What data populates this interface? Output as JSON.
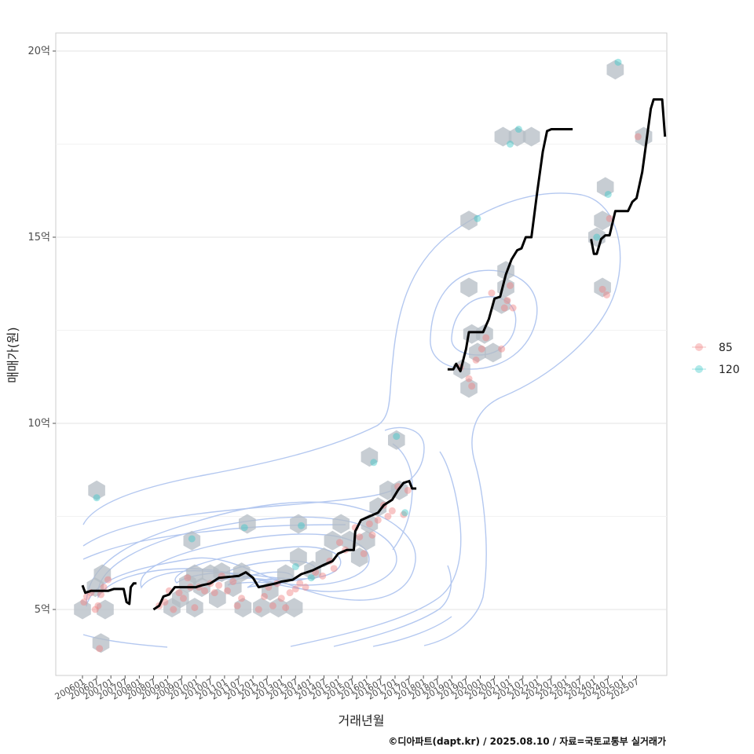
{
  "chart_data": {
    "type": "scatter",
    "xlabel": "거래년월",
    "ylabel": "매매가(원)",
    "caption": "©디아파트(dapt.kr) / 2025.08.10 / 자료=국토교통부 실거래가",
    "grid": true,
    "legend_position": "right",
    "xlim": [
      2005.75,
      2026.0
    ],
    "ylim": [
      3.5,
      20.5
    ],
    "y_ticks": [
      {
        "v": 5,
        "label": "5억"
      },
      {
        "v": 10,
        "label": "10억"
      },
      {
        "v": 15,
        "label": "15억"
      },
      {
        "v": 20,
        "label": "20억"
      }
    ],
    "x_ticks": [
      "200601",
      "200607",
      "200701",
      "200707",
      "200801",
      "200807",
      "200901",
      "200907",
      "201001",
      "201007",
      "201101",
      "201107",
      "201201",
      "201207",
      "201301",
      "201307",
      "201401",
      "201407",
      "201501",
      "201507",
      "201601",
      "201607",
      "201701",
      "201707",
      "201801",
      "201807",
      "201901",
      "201907",
      "202001",
      "202007",
      "202101",
      "202107",
      "202201",
      "202207",
      "202301",
      "202307",
      "202401",
      "202407",
      "202501",
      "202507"
    ],
    "colors": {
      "s85": "#f08080",
      "s120": "#3cc8c8",
      "trend": "#000000",
      "contour": "#b4c8f0",
      "hex": "#b4bcc4"
    },
    "series": [
      {
        "name": "85",
        "color": "#f08080",
        "points": [
          [
            2006.05,
            5.2
          ],
          [
            2006.15,
            5.35
          ],
          [
            2006.3,
            5.45
          ],
          [
            2006.45,
            5.0
          ],
          [
            2006.55,
            5.1
          ],
          [
            2006.65,
            5.4
          ],
          [
            2006.75,
            5.6
          ],
          [
            2006.6,
            3.95
          ],
          [
            2006.9,
            5.8
          ],
          [
            2008.7,
            5.1
          ],
          [
            2008.9,
            5.2
          ],
          [
            2009.05,
            5.5
          ],
          [
            2009.2,
            5.0
          ],
          [
            2009.4,
            5.45
          ],
          [
            2009.55,
            5.3
          ],
          [
            2009.7,
            5.85
          ],
          [
            2009.8,
            5.6
          ],
          [
            2009.95,
            5.05
          ],
          [
            2010.1,
            5.6
          ],
          [
            2010.3,
            5.5
          ],
          [
            2010.5,
            5.7
          ],
          [
            2010.65,
            5.45
          ],
          [
            2010.8,
            5.65
          ],
          [
            2010.9,
            5.9
          ],
          [
            2011.1,
            5.5
          ],
          [
            2011.3,
            5.75
          ],
          [
            2011.45,
            5.1
          ],
          [
            2011.6,
            5.3
          ],
          [
            2012.2,
            5.0
          ],
          [
            2012.4,
            5.35
          ],
          [
            2012.55,
            5.6
          ],
          [
            2012.7,
            5.1
          ],
          [
            2012.85,
            5.7
          ],
          [
            2013.0,
            5.3
          ],
          [
            2013.15,
            5.05
          ],
          [
            2013.3,
            5.45
          ],
          [
            2013.5,
            5.55
          ],
          [
            2013.65,
            5.7
          ],
          [
            2013.85,
            5.6
          ],
          [
            2014.2,
            6.0
          ],
          [
            2014.45,
            5.9
          ],
          [
            2014.7,
            6.3
          ],
          [
            2014.85,
            6.1
          ],
          [
            2015.05,
            6.8
          ],
          [
            2015.25,
            6.6
          ],
          [
            2015.6,
            7.2
          ],
          [
            2015.75,
            6.95
          ],
          [
            2015.9,
            6.5
          ],
          [
            2016.1,
            7.3
          ],
          [
            2016.2,
            7.0
          ],
          [
            2016.4,
            7.4
          ],
          [
            2016.6,
            7.8
          ],
          [
            2016.75,
            7.5
          ],
          [
            2016.9,
            7.65
          ],
          [
            2017.1,
            8.3
          ],
          [
            2017.3,
            7.55
          ],
          [
            2017.45,
            8.2
          ],
          [
            2019.3,
            11.5
          ],
          [
            2019.6,
            11.2
          ],
          [
            2019.7,
            11.0
          ],
          [
            2019.85,
            11.7
          ],
          [
            2020.05,
            12.0
          ],
          [
            2020.2,
            12.3
          ],
          [
            2020.4,
            13.5
          ],
          [
            2020.75,
            12.0
          ],
          [
            2020.85,
            13.1
          ],
          [
            2020.95,
            13.3
          ],
          [
            2021.05,
            13.7
          ],
          [
            2021.15,
            13.1
          ],
          [
            2024.3,
            13.6
          ],
          [
            2024.45,
            13.45
          ],
          [
            2024.55,
            15.5
          ],
          [
            2025.55,
            17.7
          ]
        ]
      },
      {
        "name": "120",
        "color": "#3cc8c8",
        "points": [
          [
            2006.5,
            8.0
          ],
          [
            2009.85,
            6.9
          ],
          [
            2011.7,
            7.2
          ],
          [
            2013.5,
            6.15
          ],
          [
            2013.7,
            7.25
          ],
          [
            2014.05,
            5.85
          ],
          [
            2016.25,
            8.95
          ],
          [
            2017.05,
            9.65
          ],
          [
            2017.35,
            7.6
          ],
          [
            2019.9,
            15.5
          ],
          [
            2021.05,
            17.5
          ],
          [
            2021.35,
            17.9
          ],
          [
            2024.1,
            15.0
          ],
          [
            2024.5,
            16.15
          ],
          [
            2024.85,
            19.7
          ]
        ]
      }
    ],
    "hexbins": [
      [
        2006.0,
        5.0
      ],
      [
        2006.45,
        5.6
      ],
      [
        2006.7,
        5.95
      ],
      [
        2006.8,
        5.0
      ],
      [
        2006.5,
        8.2
      ],
      [
        2006.65,
        4.1
      ],
      [
        2009.15,
        5.05
      ],
      [
        2009.45,
        5.3
      ],
      [
        2009.7,
        5.7
      ],
      [
        2009.95,
        5.95
      ],
      [
        2009.95,
        5.05
      ],
      [
        2010.2,
        5.6
      ],
      [
        2010.5,
        5.95
      ],
      [
        2010.75,
        5.3
      ],
      [
        2010.9,
        6.0
      ],
      [
        2011.3,
        5.6
      ],
      [
        2011.6,
        6.0
      ],
      [
        2011.65,
        5.05
      ],
      [
        2012.3,
        5.05
      ],
      [
        2012.6,
        5.5
      ],
      [
        2012.9,
        5.05
      ],
      [
        2013.15,
        5.95
      ],
      [
        2013.45,
        5.05
      ],
      [
        2013.6,
        6.4
      ],
      [
        2014.1,
        6.05
      ],
      [
        2014.5,
        6.4
      ],
      [
        2014.8,
        6.85
      ],
      [
        2015.1,
        7.3
      ],
      [
        2015.4,
        6.85
      ],
      [
        2015.75,
        6.4
      ],
      [
        2016.1,
        7.3
      ],
      [
        2016.4,
        7.75
      ],
      [
        2016.75,
        8.2
      ],
      [
        2016.1,
        9.1
      ],
      [
        2017.05,
        9.55
      ],
      [
        2017.15,
        8.2
      ],
      [
        2009.85,
        6.85
      ],
      [
        2011.8,
        7.3
      ],
      [
        2013.6,
        7.3
      ],
      [
        2016.0,
        6.85
      ],
      [
        2019.35,
        11.45
      ],
      [
        2019.6,
        10.95
      ],
      [
        2019.7,
        12.4
      ],
      [
        2019.6,
        13.65
      ],
      [
        2019.9,
        11.9
      ],
      [
        2019.6,
        15.45
      ],
      [
        2020.15,
        12.4
      ],
      [
        2020.45,
        11.9
      ],
      [
        2020.75,
        13.2
      ],
      [
        2020.9,
        13.65
      ],
      [
        2020.9,
        14.1
      ],
      [
        2020.8,
        17.7
      ],
      [
        2021.3,
        17.7
      ],
      [
        2021.8,
        17.7
      ],
      [
        2024.1,
        15.0
      ],
      [
        2024.3,
        13.65
      ],
      [
        2024.3,
        15.45
      ],
      [
        2024.4,
        16.35
      ],
      [
        2024.75,
        19.5
      ],
      [
        2025.75,
        17.7
      ]
    ],
    "trend_segments": [
      [
        [
          2006.0,
          5.65
        ],
        [
          2006.1,
          5.45
        ],
        [
          2006.3,
          5.5
        ],
        [
          2006.9,
          5.5
        ],
        [
          2007.1,
          5.55
        ],
        [
          2007.45,
          5.55
        ],
        [
          2007.55,
          5.2
        ],
        [
          2007.65,
          5.15
        ],
        [
          2007.7,
          5.6
        ],
        [
          2007.8,
          5.7
        ],
        [
          2007.9,
          5.7
        ]
      ],
      [
        [
          2008.5,
          5.0
        ],
        [
          2008.7,
          5.1
        ],
        [
          2008.85,
          5.35
        ],
        [
          2009.05,
          5.4
        ],
        [
          2009.25,
          5.6
        ],
        [
          2010.0,
          5.6
        ],
        [
          2010.2,
          5.65
        ],
        [
          2010.5,
          5.7
        ],
        [
          2010.8,
          5.85
        ],
        [
          2011.5,
          5.9
        ],
        [
          2011.75,
          6.0
        ],
        [
          2012.0,
          5.85
        ],
        [
          2012.2,
          5.6
        ],
        [
          2012.5,
          5.65
        ],
        [
          2012.8,
          5.7
        ],
        [
          2013.0,
          5.75
        ],
        [
          2013.4,
          5.8
        ],
        [
          2013.7,
          5.95
        ],
        [
          2014.1,
          6.05
        ],
        [
          2014.5,
          6.2
        ],
        [
          2014.8,
          6.3
        ],
        [
          2015.0,
          6.5
        ],
        [
          2015.3,
          6.6
        ],
        [
          2015.55,
          6.6
        ],
        [
          2015.6,
          7.1
        ],
        [
          2015.8,
          7.4
        ],
        [
          2016.1,
          7.5
        ],
        [
          2016.4,
          7.6
        ],
        [
          2016.6,
          7.8
        ],
        [
          2016.9,
          7.95
        ],
        [
          2017.1,
          8.2
        ],
        [
          2017.3,
          8.4
        ],
        [
          2017.5,
          8.45
        ],
        [
          2017.6,
          8.25
        ],
        [
          2017.75,
          8.25
        ]
      ],
      [
        [
          2018.85,
          11.45
        ],
        [
          2019.05,
          11.45
        ],
        [
          2019.15,
          11.6
        ],
        [
          2019.3,
          11.4
        ],
        [
          2019.5,
          12.0
        ],
        [
          2019.6,
          12.45
        ],
        [
          2020.1,
          12.45
        ],
        [
          2020.3,
          12.8
        ],
        [
          2020.5,
          13.35
        ],
        [
          2020.7,
          13.4
        ],
        [
          2020.9,
          14.0
        ],
        [
          2021.1,
          14.4
        ],
        [
          2021.3,
          14.65
        ],
        [
          2021.45,
          14.7
        ],
        [
          2021.6,
          15.0
        ],
        [
          2021.8,
          15.0
        ],
        [
          2022.0,
          16.2
        ],
        [
          2022.2,
          17.3
        ],
        [
          2022.35,
          17.85
        ],
        [
          2022.5,
          17.9
        ],
        [
          2023.25,
          17.9
        ]
      ],
      [
        [
          2023.9,
          14.95
        ],
        [
          2024.0,
          14.55
        ],
        [
          2024.1,
          14.55
        ],
        [
          2024.25,
          14.95
        ],
        [
          2024.4,
          15.05
        ],
        [
          2024.55,
          15.05
        ],
        [
          2024.75,
          15.7
        ],
        [
          2025.2,
          15.7
        ],
        [
          2025.35,
          15.95
        ],
        [
          2025.5,
          16.05
        ],
        [
          2025.7,
          16.75
        ],
        [
          2025.85,
          17.6
        ],
        [
          2026.0,
          18.45
        ],
        [
          2026.1,
          18.7
        ],
        [
          2026.4,
          18.7
        ],
        [
          2026.5,
          17.7
        ]
      ]
    ]
  }
}
